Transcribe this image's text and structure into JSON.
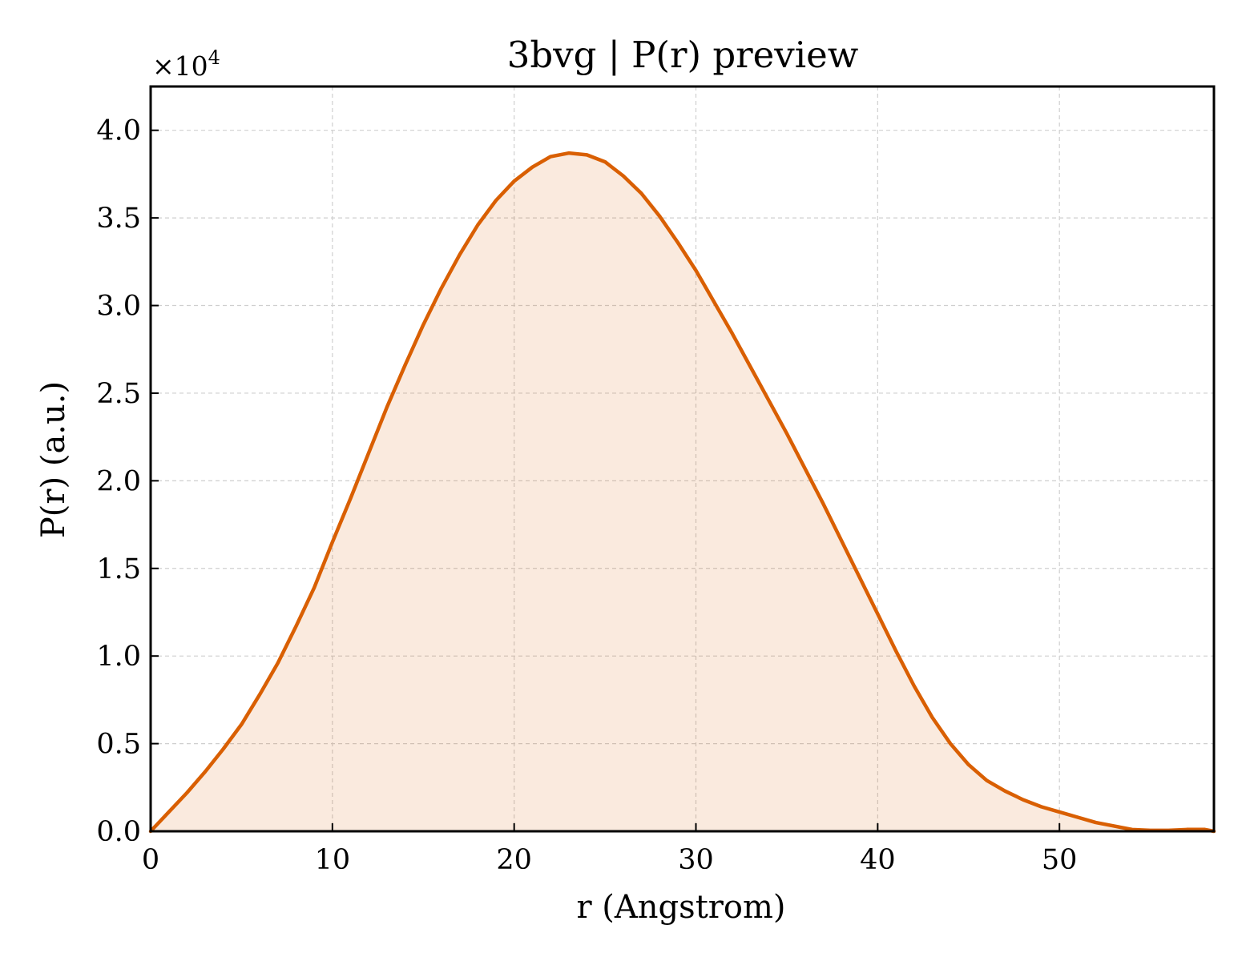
{
  "chart_data": {
    "type": "area",
    "title": "3bvg | P(r) preview",
    "xlabel": "r (Angstrom)",
    "ylabel": "P(r) (a.u.)",
    "y_multiplier_label": "×10",
    "y_multiplier_exp": "4",
    "xlim": [
      0,
      58.5
    ],
    "ylim": [
      0,
      4.25
    ],
    "xticks": [
      0,
      10,
      20,
      30,
      40,
      50
    ],
    "xtick_labels": [
      "0",
      "10",
      "20",
      "30",
      "40",
      "50"
    ],
    "yticks": [
      0,
      0.5,
      1.0,
      1.5,
      2.0,
      2.5,
      3.0,
      3.5,
      4.0
    ],
    "ytick_labels": [
      "0.0",
      "0.5",
      "1.0",
      "1.5",
      "2.0",
      "2.5",
      "3.0",
      "3.5",
      "4.0"
    ],
    "grid": true,
    "line_color": "#d95f02",
    "fill_color": "#d95f02",
    "fill_opacity": 0.13,
    "series": [
      {
        "x": [
          0,
          1,
          2,
          3,
          4,
          5,
          6,
          7,
          8,
          9,
          10,
          11,
          12,
          13,
          14,
          15,
          16,
          17,
          18,
          19,
          20,
          21,
          22,
          23,
          24,
          25,
          26,
          27,
          28,
          29,
          30,
          31,
          32,
          33,
          34,
          35,
          36,
          37,
          38,
          39,
          40,
          41,
          42,
          43,
          44,
          45,
          46,
          47,
          48,
          49,
          50,
          51,
          52,
          53,
          54,
          55,
          56,
          57,
          58,
          58.5
        ],
        "y": [
          0,
          0.11,
          0.22,
          0.34,
          0.47,
          0.61,
          0.78,
          0.96,
          1.17,
          1.39,
          1.65,
          1.9,
          2.16,
          2.42,
          2.66,
          2.89,
          3.1,
          3.29,
          3.46,
          3.6,
          3.71,
          3.79,
          3.85,
          3.87,
          3.86,
          3.82,
          3.74,
          3.64,
          3.51,
          3.36,
          3.2,
          3.02,
          2.84,
          2.65,
          2.46,
          2.27,
          2.07,
          1.87,
          1.66,
          1.45,
          1.24,
          1.03,
          0.83,
          0.65,
          0.5,
          0.38,
          0.29,
          0.23,
          0.18,
          0.14,
          0.11,
          0.08,
          0.05,
          0.03,
          0.01,
          0.005,
          0.005,
          0.01,
          0.01,
          0.0
        ]
      }
    ]
  }
}
